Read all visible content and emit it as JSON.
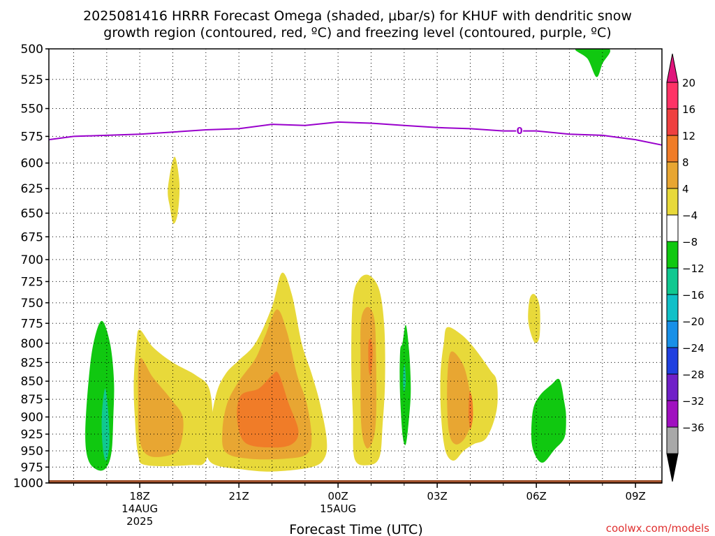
{
  "chart_data": {
    "type": "filled-contour",
    "title": {
      "line1": "2025081416 HRRR Forecast Omega (shaded, μbar/s) for KHUF with dendritic snow",
      "line2": "growth region (contoured, red, ºC) and freezing level (contoured, purple, ºC)"
    },
    "xlabel": "Forecast Time (UTC)",
    "credit": "coolwx.com/models",
    "y_axis": {
      "scale": "log-pressure",
      "inverted": true,
      "ylim": [
        1000,
        500
      ],
      "ticks": [
        "500",
        "525",
        "550",
        "575",
        "600",
        "625",
        "650",
        "675",
        "700",
        "725",
        "750",
        "775",
        "800",
        "825",
        "850",
        "875",
        "900",
        "925",
        "950",
        "975",
        "1000"
      ],
      "grid": true
    },
    "x_axis": {
      "xlim": [
        15.25,
        33.8
      ],
      "ticks": [
        {
          "hour": 18,
          "label": "18Z",
          "sub1": "14AUG",
          "sub2": "2025"
        },
        {
          "hour": 21,
          "label": "21Z",
          "sub1": "",
          "sub2": ""
        },
        {
          "hour": 24,
          "label": "00Z",
          "sub1": "15AUG",
          "sub2": ""
        },
        {
          "hour": 27,
          "label": "03Z",
          "sub1": "",
          "sub2": ""
        },
        {
          "hour": 30,
          "label": "06Z",
          "sub1": "",
          "sub2": ""
        },
        {
          "hour": 33,
          "label": "09Z",
          "sub1": "",
          "sub2": ""
        }
      ],
      "grid": true
    },
    "colorbar": {
      "levels": [
        {
          "value": "20",
          "color": "#ff3366"
        },
        {
          "value": "16",
          "color": "#ef4040"
        },
        {
          "value": "12",
          "color": "#f07c28"
        },
        {
          "value": "8",
          "color": "#e8a632"
        },
        {
          "value": "4",
          "color": "#e8d93a"
        },
        {
          "value": "−4",
          "color": "#ffffff"
        },
        {
          "value": "−8",
          "color": "#10c810"
        },
        {
          "value": "−12",
          "color": "#10c890"
        },
        {
          "value": "−16",
          "color": "#10c0c8"
        },
        {
          "value": "−20",
          "color": "#1890e8"
        },
        {
          "value": "−24",
          "color": "#2040e0"
        },
        {
          "value": "−28",
          "color": "#7020c8"
        },
        {
          "value": "−32",
          "color": "#a010c0"
        },
        {
          "value": "−36",
          "color": "#a8a8a8"
        }
      ],
      "top_arrow_color": "#e0157c",
      "bottom_arrow_color": "#000000"
    },
    "freezing_level": {
      "label": "0",
      "color": "#9900cc",
      "label_hour": 30.0,
      "points": [
        [
          15.25,
          578
        ],
        [
          16.0,
          575
        ],
        [
          17.0,
          574
        ],
        [
          18.0,
          573
        ],
        [
          19.0,
          571
        ],
        [
          20.0,
          569
        ],
        [
          21.0,
          568
        ],
        [
          22.0,
          564
        ],
        [
          23.0,
          565
        ],
        [
          24.0,
          562
        ],
        [
          25.0,
          563
        ],
        [
          26.0,
          565
        ],
        [
          27.0,
          567
        ],
        [
          28.0,
          568
        ],
        [
          29.0,
          570
        ],
        [
          30.0,
          570
        ],
        [
          31.0,
          573
        ],
        [
          32.0,
          574
        ],
        [
          33.0,
          578
        ],
        [
          33.8,
          583
        ]
      ]
    },
    "ground_color": "#a0522d",
    "omega_regions": [
      {
        "value": -6,
        "color": "#10c810",
        "points": [
          [
            16.6,
            800
          ],
          [
            16.85,
            772
          ],
          [
            17.1,
            800
          ],
          [
            17.22,
            850
          ],
          [
            17.2,
            900
          ],
          [
            17.15,
            950
          ],
          [
            17.0,
            975
          ],
          [
            16.75,
            980
          ],
          [
            16.45,
            965
          ],
          [
            16.35,
            925
          ],
          [
            16.45,
            850
          ]
        ]
      },
      {
        "value": -10,
        "color": "#10c890",
        "points": [
          [
            16.95,
            860
          ],
          [
            17.05,
            895
          ],
          [
            17.08,
            940
          ],
          [
            16.98,
            965
          ],
          [
            16.88,
            945
          ],
          [
            16.85,
            900
          ]
        ]
      },
      {
        "value": 6,
        "color": "#e8d93a",
        "points": [
          [
            17.9,
            800
          ],
          [
            18.0,
            783
          ],
          [
            18.4,
            805
          ],
          [
            19.0,
            825
          ],
          [
            19.7,
            842
          ],
          [
            20.1,
            860
          ],
          [
            20.2,
            910
          ],
          [
            20.0,
            965
          ],
          [
            19.5,
            972
          ],
          [
            18.2,
            972
          ],
          [
            17.95,
            955
          ],
          [
            17.85,
            900
          ],
          [
            17.82,
            850
          ]
        ]
      },
      {
        "value": 10,
        "color": "#e8a632",
        "points": [
          [
            18.0,
            820
          ],
          [
            18.4,
            845
          ],
          [
            18.95,
            875
          ],
          [
            19.3,
            900
          ],
          [
            19.25,
            938
          ],
          [
            19.0,
            955
          ],
          [
            18.3,
            958
          ],
          [
            18.0,
            935
          ],
          [
            17.95,
            880
          ]
        ]
      },
      {
        "value": 6,
        "color": "#e8d93a",
        "points": [
          [
            20.05,
            940
          ],
          [
            20.3,
            870
          ],
          [
            20.6,
            840
          ],
          [
            21.0,
            822
          ],
          [
            21.5,
            800
          ],
          [
            22.0,
            755
          ],
          [
            22.3,
            715
          ],
          [
            22.6,
            740
          ],
          [
            22.9,
            800
          ],
          [
            23.2,
            840
          ],
          [
            23.45,
            880
          ],
          [
            23.65,
            930
          ],
          [
            23.6,
            960
          ],
          [
            23.2,
            975
          ],
          [
            22.0,
            982
          ],
          [
            21.0,
            978
          ],
          [
            20.3,
            972
          ],
          [
            20.05,
            960
          ]
        ]
      },
      {
        "value": 10,
        "color": "#e8a632",
        "points": [
          [
            20.5,
            920
          ],
          [
            20.65,
            880
          ],
          [
            21.0,
            850
          ],
          [
            21.5,
            820
          ],
          [
            21.8,
            790
          ],
          [
            22.15,
            758
          ],
          [
            22.45,
            785
          ],
          [
            22.75,
            840
          ],
          [
            23.05,
            880
          ],
          [
            23.2,
            930
          ],
          [
            23.05,
            955
          ],
          [
            22.4,
            962
          ],
          [
            21.3,
            962
          ],
          [
            20.6,
            952
          ]
        ]
      },
      {
        "value": 14,
        "color": "#f07c28",
        "points": [
          [
            20.95,
            905
          ],
          [
            21.05,
            870
          ],
          [
            21.6,
            860
          ],
          [
            22.0,
            842
          ],
          [
            22.2,
            840
          ],
          [
            22.5,
            880
          ],
          [
            22.8,
            920
          ],
          [
            22.6,
            940
          ],
          [
            22.0,
            945
          ],
          [
            21.2,
            938
          ]
        ]
      },
      {
        "value": 6,
        "color": "#e8d93a",
        "points": [
          [
            24.45,
            745
          ],
          [
            24.65,
            722
          ],
          [
            24.95,
            718
          ],
          [
            25.25,
            735
          ],
          [
            25.4,
            780
          ],
          [
            25.42,
            850
          ],
          [
            25.35,
            910
          ],
          [
            25.25,
            960
          ],
          [
            24.9,
            972
          ],
          [
            24.5,
            962
          ],
          [
            24.45,
            900
          ],
          [
            24.4,
            820
          ]
        ]
      },
      {
        "value": 10,
        "color": "#e8a632",
        "points": [
          [
            24.7,
            770
          ],
          [
            24.9,
            755
          ],
          [
            25.1,
            770
          ],
          [
            25.15,
            820
          ],
          [
            25.15,
            900
          ],
          [
            25.05,
            935
          ],
          [
            24.85,
            945
          ],
          [
            24.7,
            910
          ],
          [
            24.68,
            820
          ]
        ]
      },
      {
        "value": 14,
        "color": "#f07c28",
        "points": [
          [
            24.92,
            800
          ],
          [
            24.99,
            795
          ],
          [
            25.05,
            810
          ],
          [
            25.0,
            840
          ],
          [
            24.93,
            835
          ]
        ]
      },
      {
        "value": -6,
        "color": "#10c810",
        "points": [
          [
            25.95,
            800
          ],
          [
            26.05,
            777
          ],
          [
            26.15,
            810
          ],
          [
            26.2,
            860
          ],
          [
            26.15,
            900
          ],
          [
            26.05,
            940
          ],
          [
            25.95,
            925
          ],
          [
            25.87,
            860
          ],
          [
            25.88,
            810
          ]
        ]
      },
      {
        "value": -10,
        "color": "#10c890",
        "points": [
          [
            25.98,
            835
          ],
          [
            26.02,
            828
          ],
          [
            26.05,
            850
          ],
          [
            26.0,
            865
          ],
          [
            25.97,
            855
          ]
        ]
      },
      {
        "value": 6,
        "color": "#e8d93a",
        "points": [
          [
            27.3,
            780
          ],
          [
            27.7,
            788
          ],
          [
            28.1,
            805
          ],
          [
            28.6,
            835
          ],
          [
            28.8,
            850
          ],
          [
            28.8,
            890
          ],
          [
            28.5,
            930
          ],
          [
            28.1,
            940
          ],
          [
            27.8,
            950
          ],
          [
            27.5,
            965
          ],
          [
            27.25,
            950
          ],
          [
            27.12,
            900
          ],
          [
            27.1,
            840
          ],
          [
            27.2,
            800
          ]
        ]
      },
      {
        "value": 10,
        "color": "#e8a632",
        "points": [
          [
            27.4,
            812
          ],
          [
            27.75,
            825
          ],
          [
            27.95,
            855
          ],
          [
            28.05,
            900
          ],
          [
            27.85,
            930
          ],
          [
            27.55,
            940
          ],
          [
            27.35,
            920
          ],
          [
            27.3,
            860
          ]
        ]
      },
      {
        "value": 14,
        "color": "#f07c28",
        "points": [
          [
            27.98,
            865
          ],
          [
            28.06,
            875
          ],
          [
            28.08,
            900
          ],
          [
            28.0,
            918
          ],
          [
            27.95,
            895
          ]
        ]
      },
      {
        "value": 6,
        "color": "#e8d93a",
        "points": [
          [
            29.8,
            745
          ],
          [
            29.95,
            740
          ],
          [
            30.1,
            755
          ],
          [
            30.1,
            790
          ],
          [
            29.98,
            800
          ],
          [
            29.85,
            790
          ],
          [
            29.75,
            770
          ]
        ]
      },
      {
        "value": -6,
        "color": "#10c810",
        "points": [
          [
            29.9,
            890
          ],
          [
            30.1,
            870
          ],
          [
            30.45,
            855
          ],
          [
            30.7,
            848
          ],
          [
            30.85,
            880
          ],
          [
            30.9,
            900
          ],
          [
            30.85,
            930
          ],
          [
            30.55,
            948
          ],
          [
            30.2,
            968
          ],
          [
            29.95,
            955
          ],
          [
            29.85,
            930
          ]
        ]
      },
      {
        "value": -6,
        "color": "#10c810",
        "points": [
          [
            31.2,
            500
          ],
          [
            32.2,
            500
          ],
          [
            32.0,
            512
          ],
          [
            31.82,
            523
          ],
          [
            31.55,
            508
          ]
        ]
      },
      {
        "value": 6,
        "color": "#e8d93a",
        "points": [
          [
            18.85,
            625
          ],
          [
            19.05,
            594
          ],
          [
            19.2,
            620
          ],
          [
            19.15,
            650
          ],
          [
            19.02,
            661
          ],
          [
            18.92,
            645
          ]
        ]
      }
    ]
  }
}
